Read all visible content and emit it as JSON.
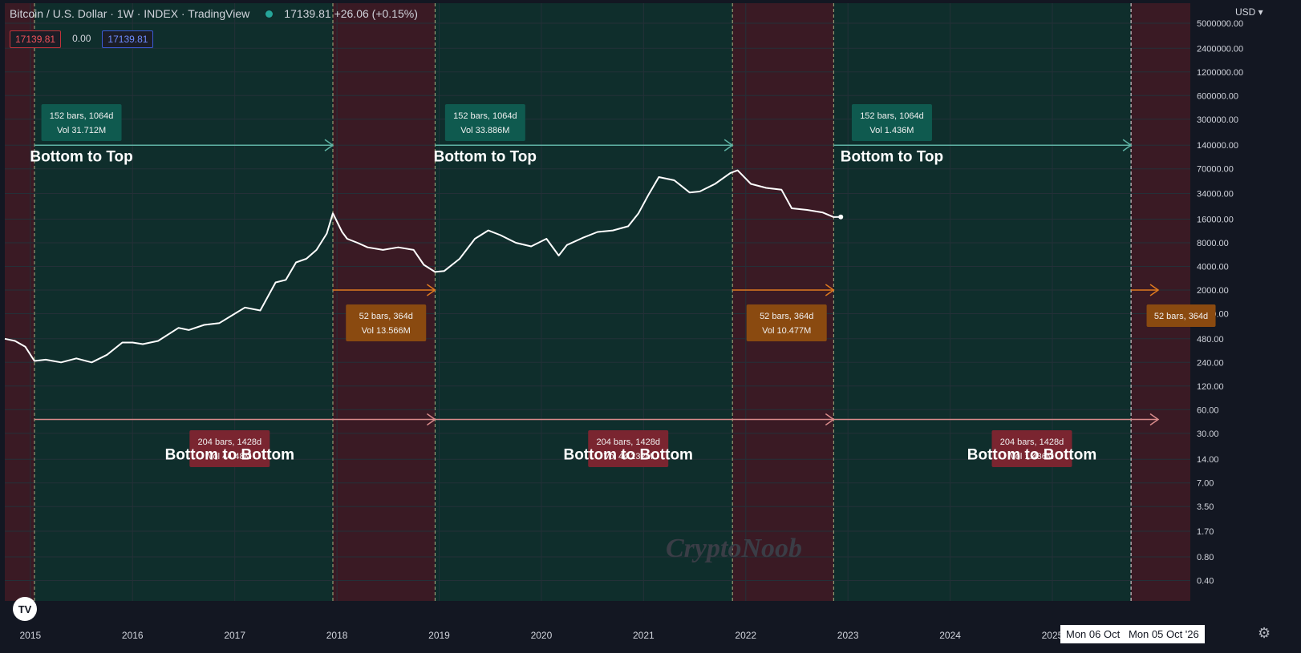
{
  "header": {
    "symbol": "Bitcoin / U.S. Dollar · 1W · INDEX · TradingView",
    "price_change": "17139.81  +26.06 (+0.15%)"
  },
  "ohlc": {
    "left": "17139.81",
    "mid": "0.00",
    "right": "17139.81"
  },
  "currency": "USD",
  "watermark": "CryptoNoob",
  "colors": {
    "bg": "#131722",
    "bull": "#0f2e2c",
    "bear": "#3a1a24",
    "teal_arrow": "#5fb3a5",
    "orange_arrow": "#e07a1f",
    "pink_arrow": "#d98b8b",
    "teal_label": "#0f5a4f",
    "orange_label": "#8a4a10",
    "red_label": "#7a2530"
  },
  "time_tags": [
    "Mon 06 Oct '25",
    "Mon 05 Oct '26"
  ],
  "chart_data": {
    "type": "line",
    "log_scale": true,
    "xlim": [
      2014.75,
      2026.35
    ],
    "ylim": [
      0.22,
      9000000
    ],
    "x_ticks": [
      "2015",
      "2016",
      "2017",
      "2018",
      "2019",
      "2020",
      "2021",
      "2022",
      "2023",
      "2024",
      "2025"
    ],
    "y_ticks": [
      "5000000.00",
      "2400000.00",
      "1200000.00",
      "600000.00",
      "300000.00",
      "140000.00",
      "70000.00",
      "34000.00",
      "16000.00",
      "8000.00",
      "4000.00",
      "2000.00",
      "1000.00",
      "480.00",
      "240.00",
      "120.00",
      "60.00",
      "30.00",
      "14.00",
      "7.00",
      "3.50",
      "1.70",
      "0.80",
      "0.40"
    ],
    "series": [
      {
        "x": [
          2014.75,
          2014.85,
          2014.95,
          2015.04,
          2015.15,
          2015.3,
          2015.45,
          2015.6,
          2015.75,
          2015.9,
          2016.0,
          2016.1,
          2016.25,
          2016.45,
          2016.55,
          2016.7,
          2016.85,
          2017.0,
          2017.1,
          2017.25,
          2017.4,
          2017.5,
          2017.6,
          2017.7,
          2017.8,
          2017.9,
          2017.96,
          2018.05,
          2018.1,
          2018.2,
          2018.3,
          2018.45,
          2018.6,
          2018.75,
          2018.85,
          2018.96,
          2019.05,
          2019.2,
          2019.35,
          2019.48,
          2019.6,
          2019.75,
          2019.9,
          2020.05,
          2020.17,
          2020.25,
          2020.4,
          2020.55,
          2020.7,
          2020.85,
          2020.95,
          2021.05,
          2021.15,
          2021.3,
          2021.45,
          2021.55,
          2021.7,
          2021.85,
          2021.92,
          2022.05,
          2022.2,
          2022.35,
          2022.45,
          2022.6,
          2022.75,
          2022.86,
          2022.93
        ],
        "values": [
          480,
          450,
          380,
          250,
          260,
          240,
          270,
          240,
          300,
          430,
          430,
          410,
          450,
          660,
          620,
          720,
          760,
          1000,
          1200,
          1100,
          2500,
          2700,
          4500,
          5000,
          6500,
          10500,
          19000,
          11000,
          9000,
          8000,
          7000,
          6500,
          7000,
          6500,
          4200,
          3400,
          3500,
          5000,
          9000,
          11500,
          10000,
          8000,
          7200,
          9000,
          5500,
          7500,
          9200,
          11000,
          11500,
          13000,
          19000,
          33000,
          55000,
          50000,
          35000,
          36000,
          45000,
          62000,
          67000,
          45000,
          40000,
          38000,
          22000,
          21000,
          19500,
          17000,
          17100
        ]
      }
    ],
    "arrows": [
      {
        "group": "bottom-to-top",
        "x0": 2015.04,
        "x1": 2017.96,
        "level": 140000
      },
      {
        "group": "bottom-to-top",
        "x0": 2018.96,
        "x1": 2021.87,
        "level": 140000
      },
      {
        "group": "bottom-to-top",
        "x0": 2022.86,
        "x1": 2025.77,
        "level": 140000
      },
      {
        "group": "top-to-bottom",
        "x0": 2017.96,
        "x1": 2018.96,
        "level": 2000
      },
      {
        "group": "top-to-bottom",
        "x0": 2021.87,
        "x1": 2022.86,
        "level": 2000
      },
      {
        "group": "top-to-bottom",
        "x0": 2025.77,
        "x1": 2026.76,
        "level": 2000
      },
      {
        "group": "bottom-to-bottom",
        "x0": 2015.04,
        "x1": 2018.96,
        "level": 45
      },
      {
        "group": "bottom-to-bottom",
        "x0": 2018.96,
        "x1": 2022.86,
        "level": 45
      },
      {
        "group": "bottom-to-bottom",
        "x0": 2022.86,
        "x1": 2026.76,
        "level": 45
      }
    ],
    "annotations": [
      {
        "group": "teal",
        "x": 2015.5,
        "lines": [
          "152 bars, 1064d",
          "Vol 31.712M"
        ]
      },
      {
        "group": "teal",
        "x": 2019.45,
        "lines": [
          "152 bars, 1064d",
          "Vol 33.886M"
        ]
      },
      {
        "group": "teal",
        "x": 2023.43,
        "lines": [
          "152 bars, 1064d",
          "Vol 1.436M"
        ]
      },
      {
        "group": "orange",
        "x": 2018.48,
        "lines": [
          "52 bars, 364d",
          "Vol 13.566M"
        ]
      },
      {
        "group": "orange",
        "x": 2022.4,
        "lines": [
          "52 bars, 364d",
          "Vol 10.477M"
        ]
      },
      {
        "group": "orange",
        "x": 2026.26,
        "lines": [
          "52 bars, 364d"
        ]
      },
      {
        "group": "red",
        "x": 2016.95,
        "lines": [
          "204 bars, 1428d",
          "Vol 44.48M"
        ]
      },
      {
        "group": "red",
        "x": 2020.85,
        "lines": [
          "204 bars, 1428d",
          "Vol 44.232M"
        ]
      },
      {
        "group": "red",
        "x": 2024.8,
        "lines": [
          "204 bars, 1428d",
          "Vol 1.436M"
        ]
      }
    ],
    "phase_labels": [
      {
        "text": "Bottom to Top",
        "x": 2015.5,
        "level": 100000
      },
      {
        "text": "Bottom to Top",
        "x": 2019.45,
        "level": 100000
      },
      {
        "text": "Bottom to Top",
        "x": 2023.43,
        "level": 100000
      },
      {
        "text": "Bottom to Bottom",
        "x": 2016.95,
        "level": 16
      },
      {
        "text": "Bottom to Bottom",
        "x": 2020.85,
        "level": 16
      },
      {
        "text": "Bottom to Bottom",
        "x": 2024.8,
        "level": 16
      }
    ],
    "bands": [
      {
        "kind": "bear",
        "x0": 2014.75,
        "x1": 2015.04
      },
      {
        "kind": "bull",
        "x0": 2015.04,
        "x1": 2017.96
      },
      {
        "kind": "bear",
        "x0": 2017.96,
        "x1": 2018.96
      },
      {
        "kind": "bull",
        "x0": 2018.96,
        "x1": 2021.87
      },
      {
        "kind": "bear",
        "x0": 2021.87,
        "x1": 2022.86
      },
      {
        "kind": "bull",
        "x0": 2022.86,
        "x1": 2025.77
      },
      {
        "kind": "bear",
        "x0": 2025.77,
        "x1": 2026.76
      }
    ]
  }
}
